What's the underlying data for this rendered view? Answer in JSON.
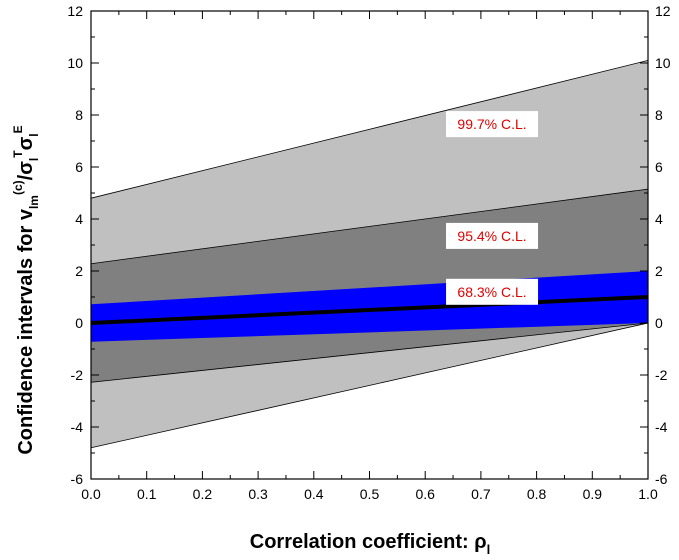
{
  "chart_data": {
    "type": "area",
    "xlabel": "Correlation coefficient: ρ",
    "xlabel_sub": "l",
    "ylabel": {
      "prefix": "Confidence intervals for v",
      "sub_lm": "lm",
      "sup_c": "(c)",
      "slash": "/σ",
      "sub_l1": "l",
      "sup_T": "T",
      "sigma2": "σ",
      "sub_l2": "l",
      "sup_E": "E"
    },
    "xlim": [
      0.0,
      1.0
    ],
    "ylim": [
      -6,
      12
    ],
    "x_ticks": [
      "0.0",
      "0.1",
      "0.2",
      "0.3",
      "0.4",
      "0.5",
      "0.6",
      "0.7",
      "0.8",
      "0.9",
      "1.0"
    ],
    "y_ticks": [
      "-6",
      "-4",
      "-2",
      "0",
      "2",
      "4",
      "6",
      "8",
      "10",
      "12"
    ],
    "y_ticks_right": [
      "-6",
      "-4",
      "-2",
      "0",
      "2",
      "4",
      "6",
      "8",
      "10",
      "12"
    ],
    "grid": false,
    "central_line": {
      "x": [
        0.0,
        1.0
      ],
      "y": [
        0.0,
        1.0
      ],
      "color": "#000000"
    },
    "bands": [
      {
        "name": "99.7% C.L.",
        "x": [
          0.0,
          1.0
        ],
        "upper": [
          4.8,
          10.1
        ],
        "lower": [
          -4.8,
          0.0
        ],
        "color": "#c0c0c0"
      },
      {
        "name": "95.4% C.L.",
        "x": [
          0.0,
          1.0
        ],
        "upper": [
          2.28,
          5.15
        ],
        "lower": [
          -2.28,
          0.0
        ],
        "color": "#808080"
      },
      {
        "name": "68.3% C.L.",
        "x": [
          0.0,
          1.0
        ],
        "upper": [
          0.72,
          2.0
        ],
        "lower": [
          -0.72,
          0.0
        ],
        "color": "#0000ff"
      }
    ],
    "annotations": [
      {
        "label": "99.7% C.L.",
        "x": 0.72,
        "y": 7.65
      },
      {
        "label": "95.4% C.L.",
        "x": 0.72,
        "y": 3.35
      },
      {
        "label": "68.3% C.L.",
        "x": 0.72,
        "y": 1.2
      }
    ]
  }
}
